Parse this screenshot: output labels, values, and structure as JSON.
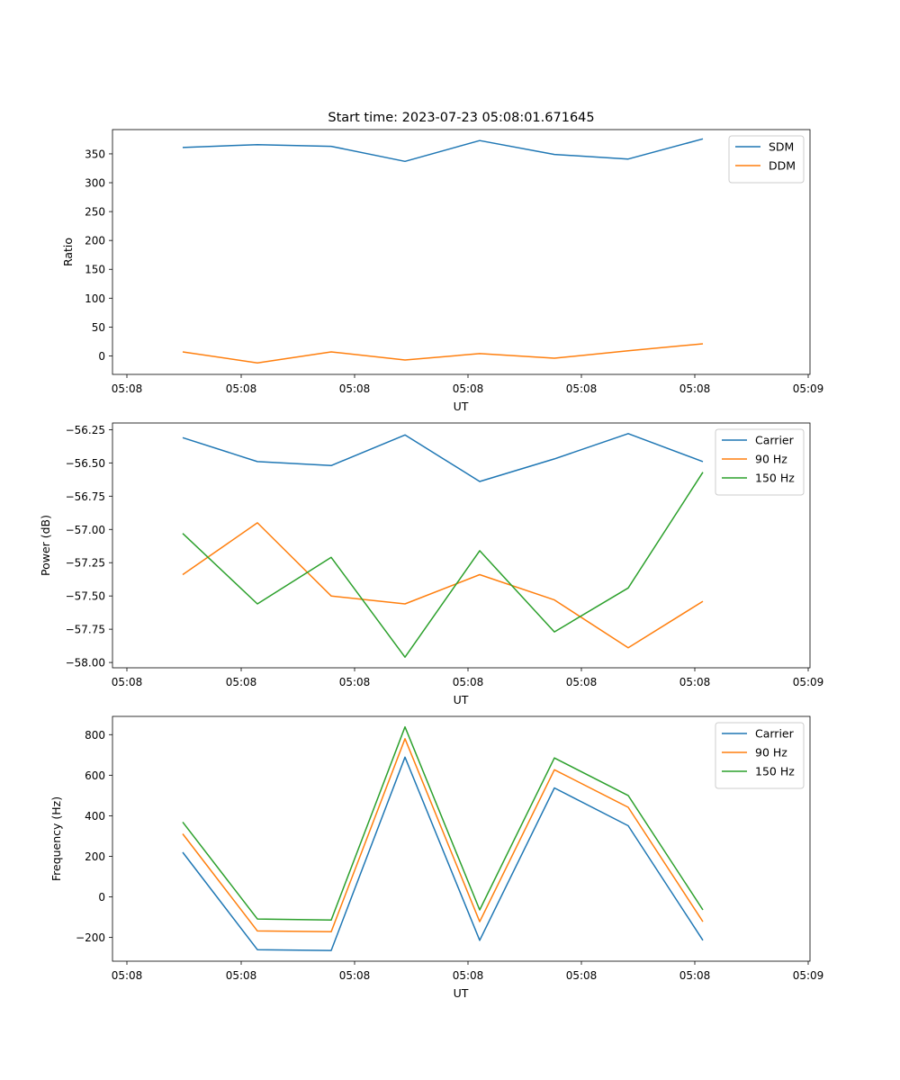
{
  "title": "Start time: 2023-07-23 05:08:01.671645",
  "colors": {
    "blue": "#1f77b4",
    "orange": "#ff7f0e",
    "green": "#2ca02c"
  },
  "chart_data": [
    {
      "type": "line",
      "xlabel": "UT",
      "ylabel": "Ratio",
      "x_tick_labels": [
        "05:08",
        "05:08",
        "05:08",
        "05:08",
        "05:08",
        "05:08",
        "05:09"
      ],
      "y_ticks": [
        0,
        50,
        100,
        150,
        200,
        250,
        300,
        350
      ],
      "y_tick_labels": [
        "0",
        "50",
        "100",
        "150",
        "200",
        "250",
        "300",
        "350"
      ],
      "ylim": [
        -32,
        392
      ],
      "legend_position": "top-right",
      "series": [
        {
          "name": "SDM",
          "color": "#1f77b4",
          "values": [
            361,
            366,
            363,
            337,
            373,
            349,
            341,
            376
          ]
        },
        {
          "name": "DDM",
          "color": "#ff7f0e",
          "values": [
            7,
            -12,
            7,
            -7,
            4,
            -4,
            9,
            21
          ]
        }
      ]
    },
    {
      "type": "line",
      "xlabel": "UT",
      "ylabel": "Power (dB)",
      "x_tick_labels": [
        "05:08",
        "05:08",
        "05:08",
        "05:08",
        "05:08",
        "05:08",
        "05:09"
      ],
      "y_ticks": [
        -58.0,
        -57.75,
        -57.5,
        -57.25,
        -57.0,
        -56.75,
        -56.5,
        -56.25
      ],
      "y_tick_labels": [
        "−58.00",
        "−57.75",
        "−57.50",
        "−57.25",
        "−57.00",
        "−56.75",
        "−56.50",
        "−56.25"
      ],
      "ylim": [
        -58.04,
        -56.2
      ],
      "legend_position": "top-right",
      "series": [
        {
          "name": "Carrier",
          "color": "#1f77b4",
          "values": [
            -56.31,
            -56.49,
            -56.52,
            -56.29,
            -56.64,
            -56.47,
            -56.28,
            -56.49
          ]
        },
        {
          "name": "90 Hz",
          "color": "#ff7f0e",
          "values": [
            -57.34,
            -56.95,
            -57.5,
            -57.56,
            -57.34,
            -57.53,
            -57.89,
            -57.54
          ]
        },
        {
          "name": "150 Hz",
          "color": "#2ca02c",
          "values": [
            -57.03,
            -57.56,
            -57.21,
            -57.96,
            -57.16,
            -57.77,
            -57.44,
            -56.57
          ]
        }
      ]
    },
    {
      "type": "line",
      "xlabel": "UT",
      "ylabel": "Frequency (Hz)",
      "x_tick_labels": [
        "05:08",
        "05:08",
        "05:08",
        "05:08",
        "05:08",
        "05:08",
        "05:09"
      ],
      "y_ticks": [
        -200,
        0,
        200,
        400,
        600,
        800
      ],
      "y_tick_labels": [
        "−200",
        "0",
        "200",
        "400",
        "600",
        "800"
      ],
      "ylim": [
        -317,
        890
      ],
      "legend_position": "top-right",
      "series": [
        {
          "name": "Carrier",
          "color": "#1f77b4",
          "values": [
            220,
            -260,
            -264,
            689,
            -214,
            537,
            351,
            -214
          ]
        },
        {
          "name": "90 Hz",
          "color": "#ff7f0e",
          "values": [
            311,
            -168,
            -172,
            780,
            -122,
            627,
            442,
            -122
          ]
        },
        {
          "name": "150 Hz",
          "color": "#2ca02c",
          "values": [
            369,
            -109,
            -114,
            838,
            -64,
            685,
            500,
            -64
          ]
        }
      ]
    }
  ]
}
